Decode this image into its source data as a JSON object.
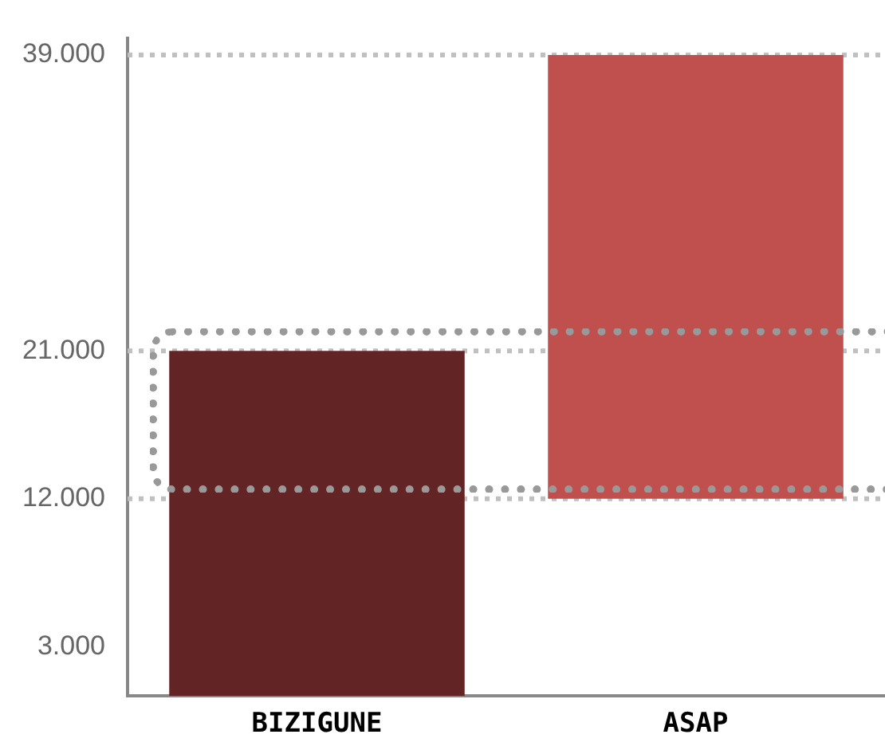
{
  "chart_data": {
    "type": "bar",
    "categories": [
      "BIZIGUNE",
      "ASAP"
    ],
    "values": [
      21000,
      27000
    ],
    "base": [
      0,
      12000
    ],
    "colors": [
      "#622424",
      "#c0504d"
    ],
    "ylim": [
      0,
      40000
    ],
    "yticks": [
      {
        "value": 3000,
        "label": "3.000"
      },
      {
        "value": 12000,
        "label": "12.000"
      },
      {
        "value": 21000,
        "label": "21.000"
      },
      {
        "value": 39000,
        "label": "39.000"
      }
    ],
    "ref_lines": [
      {
        "axis": "y",
        "value": 39000,
        "color": "#c0c0c0",
        "line_style": "dotted"
      },
      {
        "axis": "y",
        "value": 21000,
        "color": "#c0c0c0",
        "line_style": "dotted"
      },
      {
        "axis": "y",
        "value": 12000,
        "color": "#c0c0c0",
        "line_style": "dotted"
      }
    ],
    "grid": false,
    "legend": false
  }
}
